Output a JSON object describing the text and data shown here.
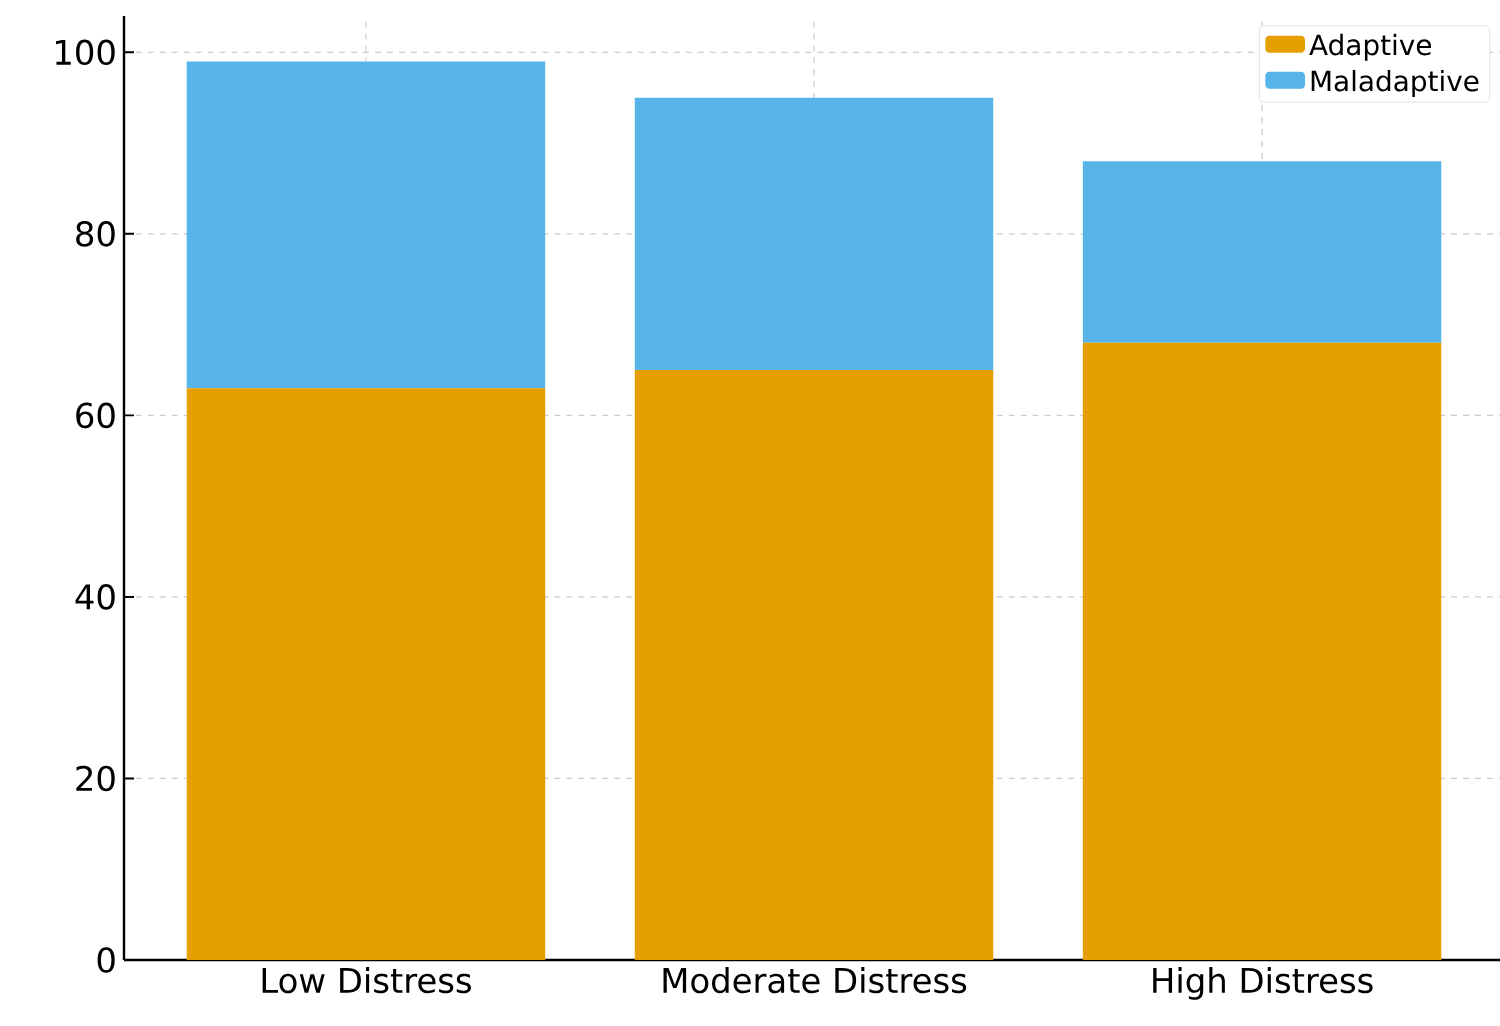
{
  "chart_data": {
    "type": "bar",
    "stacked": true,
    "categories": [
      "Low Distress",
      "Moderate Distress",
      "High Distress"
    ],
    "series": [
      {
        "name": "Adaptive",
        "color": "#e69f00",
        "values": [
          63,
          65,
          68
        ]
      },
      {
        "name": "Maladaptive",
        "color": "#56b4e9",
        "values": [
          36,
          30,
          20
        ]
      }
    ],
    "ylim": [
      0,
      104
    ],
    "yticks": [
      0,
      20,
      40,
      60,
      80,
      100
    ],
    "grid": true,
    "legend": "top right"
  }
}
